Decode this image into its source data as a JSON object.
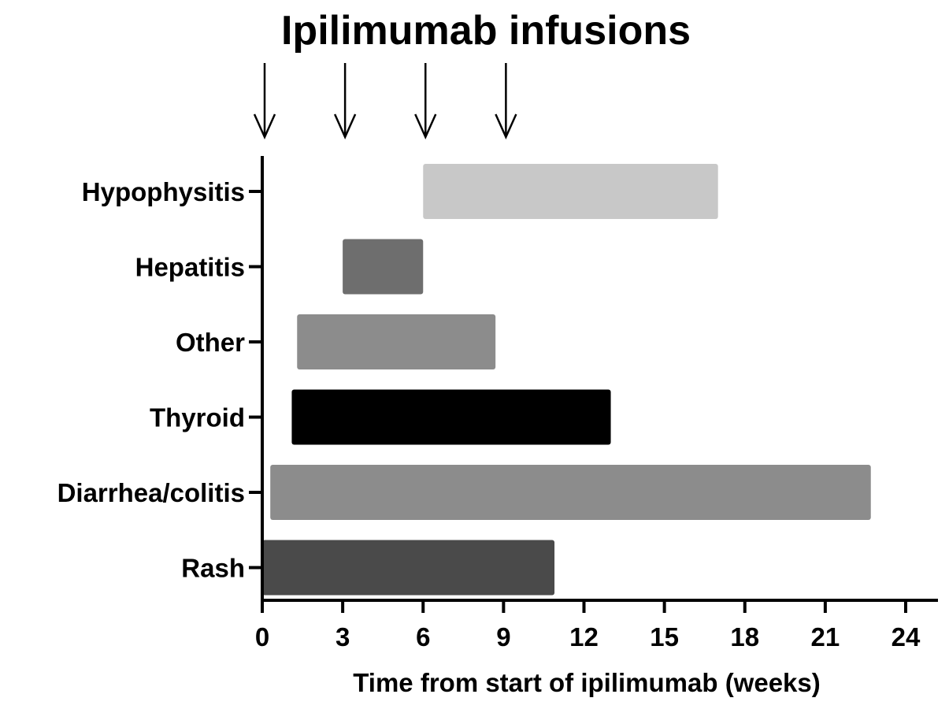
{
  "chart_data": {
    "type": "bar",
    "orientation": "horizontal",
    "title": "Ipilimumab infusions",
    "xlabel": "Time from start of ipilimumab (weeks)",
    "ylabel": "",
    "xlim": [
      0,
      24
    ],
    "xticks": [
      0,
      3,
      6,
      9,
      12,
      15,
      18,
      21,
      24
    ],
    "grid": false,
    "legend": "none",
    "infusion_weeks": [
      0,
      3,
      6,
      9
    ],
    "categories": [
      "Hypophysitis",
      "Hepatitis",
      "Other",
      "Thyroid",
      "Diarrhea/colitis",
      "Rash"
    ],
    "bars": [
      {
        "label": "Hypophysitis",
        "start": 6,
        "end": 17,
        "color": "#c8c8c8"
      },
      {
        "label": "Hepatitis",
        "start": 3,
        "end": 6,
        "color": "#6e6e6e"
      },
      {
        "label": "Other",
        "start": 1.3,
        "end": 8.7,
        "color": "#8c8c8c"
      },
      {
        "label": "Thyroid",
        "start": 1.1,
        "end": 13,
        "color": "#000000"
      },
      {
        "label": "Diarrhea/colitis",
        "start": 0.3,
        "end": 22.7,
        "color": "#8c8c8c"
      },
      {
        "label": "Rash",
        "start": 0,
        "end": 10.9,
        "color": "#4a4a4a"
      }
    ]
  }
}
